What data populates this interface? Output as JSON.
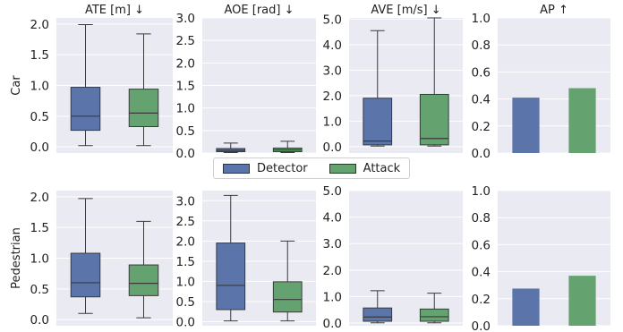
{
  "colors": {
    "detector": "#5B75AA",
    "attack": "#64A370",
    "panel_bg": "#EAEAF2",
    "grid": "#ffffff",
    "line": "#3a3a3a"
  },
  "legend": {
    "items": [
      {
        "label": "Detector",
        "color": "#5B75AA"
      },
      {
        "label": "Attack",
        "color": "#64A370"
      }
    ],
    "placement": "center"
  },
  "chart_data": [
    {
      "type": "box",
      "title": "ATE [m] ↓",
      "ylabel": "Car",
      "ylim": [
        -0.1,
        2.1
      ],
      "yticks": [
        0.0,
        0.5,
        1.0,
        1.5,
        2.0
      ],
      "tick_labels": [
        "0.0",
        "0.5",
        "1.0",
        "1.5",
        "2.0"
      ],
      "series": [
        {
          "name": "Detector",
          "stats": {
            "whislo": 0.02,
            "q1": 0.27,
            "med": 0.5,
            "q3": 0.97,
            "whishi": 1.99
          }
        },
        {
          "name": "Attack",
          "stats": {
            "whislo": 0.02,
            "q1": 0.33,
            "med": 0.55,
            "q3": 0.94,
            "whishi": 1.84
          }
        }
      ]
    },
    {
      "type": "box",
      "title": "AOE [rad] ↓",
      "ylabel": "",
      "ylim": [
        0.0,
        3.0
      ],
      "yticks": [
        0.0,
        0.5,
        1.0,
        1.5,
        2.0,
        2.5,
        3.0
      ],
      "tick_labels": [
        "0.0",
        "0.5",
        "1.0",
        "1.5",
        "2.0",
        "2.5",
        "3.0"
      ],
      "series": [
        {
          "name": "Detector",
          "stats": {
            "whislo": 0.01,
            "q1": 0.03,
            "med": 0.06,
            "q3": 0.1,
            "whishi": 0.22
          }
        },
        {
          "name": "Attack",
          "stats": {
            "whislo": 0.01,
            "q1": 0.03,
            "med": 0.07,
            "q3": 0.11,
            "whishi": 0.26
          }
        }
      ]
    },
    {
      "type": "box",
      "title": "AVE [m/s] ↓",
      "ylabel": "",
      "ylim": [
        -0.25,
        5.05
      ],
      "yticks": [
        0.0,
        1.0,
        2.0,
        3.0,
        4.0,
        5.0
      ],
      "tick_labels": [
        "0.0",
        "1.0",
        "2.0",
        "3.0",
        "4.0",
        "5.0"
      ],
      "series": [
        {
          "name": "Detector",
          "stats": {
            "whislo": 0.02,
            "q1": 0.07,
            "med": 0.22,
            "q3": 1.9,
            "whishi": 4.55
          }
        },
        {
          "name": "Attack",
          "stats": {
            "whislo": 0.02,
            "q1": 0.07,
            "med": 0.32,
            "q3": 2.05,
            "whishi": 5.05
          }
        }
      ]
    },
    {
      "type": "bar",
      "title": "AP ↑",
      "ylabel": "",
      "ylim": [
        0.0,
        1.0
      ],
      "yticks": [
        0.0,
        0.2,
        0.4,
        0.6,
        0.8,
        1.0
      ],
      "tick_labels": [
        "0.0",
        "0.2",
        "0.4",
        "0.6",
        "0.8",
        "1.0"
      ],
      "series": [
        {
          "name": "Detector",
          "value": 0.41
        },
        {
          "name": "Attack",
          "value": 0.48
        }
      ]
    },
    {
      "type": "box",
      "title": "",
      "ylabel": "Pedestrian",
      "ylim": [
        -0.1,
        2.1
      ],
      "yticks": [
        0.0,
        0.5,
        1.0,
        1.5,
        2.0
      ],
      "tick_labels": [
        "0.0",
        "0.5",
        "1.0",
        "1.5",
        "2.0"
      ],
      "series": [
        {
          "name": "Detector",
          "stats": {
            "whislo": 0.1,
            "q1": 0.37,
            "med": 0.6,
            "q3": 1.08,
            "whishi": 1.97
          }
        },
        {
          "name": "Attack",
          "stats": {
            "whislo": 0.03,
            "q1": 0.39,
            "med": 0.59,
            "q3": 0.89,
            "whishi": 1.6
          }
        }
      ]
    },
    {
      "type": "box",
      "title": "",
      "ylabel": "",
      "ylim": [
        -0.1,
        3.25
      ],
      "yticks": [
        0.0,
        0.5,
        1.0,
        1.5,
        2.0,
        2.5,
        3.0
      ],
      "tick_labels": [
        "0.0",
        "0.5",
        "1.0",
        "1.5",
        "2.0",
        "2.5",
        "3.0"
      ],
      "series": [
        {
          "name": "Detector",
          "stats": {
            "whislo": 0.02,
            "q1": 0.3,
            "med": 0.9,
            "q3": 1.95,
            "whishi": 3.13
          }
        },
        {
          "name": "Attack",
          "stats": {
            "whislo": 0.02,
            "q1": 0.24,
            "med": 0.55,
            "q3": 0.99,
            "whishi": 2.0
          }
        }
      ]
    },
    {
      "type": "box",
      "title": "",
      "ylabel": "",
      "ylim": [
        -0.1,
        5.0
      ],
      "yticks": [
        0.0,
        1.0,
        2.0,
        3.0,
        4.0,
        5.0
      ],
      "tick_labels": [
        "0.0",
        "1.0",
        "2.0",
        "3.0",
        "4.0",
        "5.0"
      ],
      "series": [
        {
          "name": "Detector",
          "stats": {
            "whislo": 0.01,
            "q1": 0.07,
            "med": 0.23,
            "q3": 0.57,
            "whishi": 1.22
          }
        },
        {
          "name": "Attack",
          "stats": {
            "whislo": 0.01,
            "q1": 0.07,
            "med": 0.24,
            "q3": 0.53,
            "whishi": 1.13
          }
        }
      ]
    },
    {
      "type": "bar",
      "title": "",
      "ylabel": "",
      "ylim": [
        0.0,
        1.0
      ],
      "yticks": [
        0.0,
        0.2,
        0.4,
        0.6,
        0.8,
        1.0
      ],
      "tick_labels": [
        "0.0",
        "0.2",
        "0.4",
        "0.6",
        "0.8",
        "1.0"
      ],
      "series": [
        {
          "name": "Detector",
          "value": 0.275
        },
        {
          "name": "Attack",
          "value": 0.37
        }
      ]
    }
  ]
}
